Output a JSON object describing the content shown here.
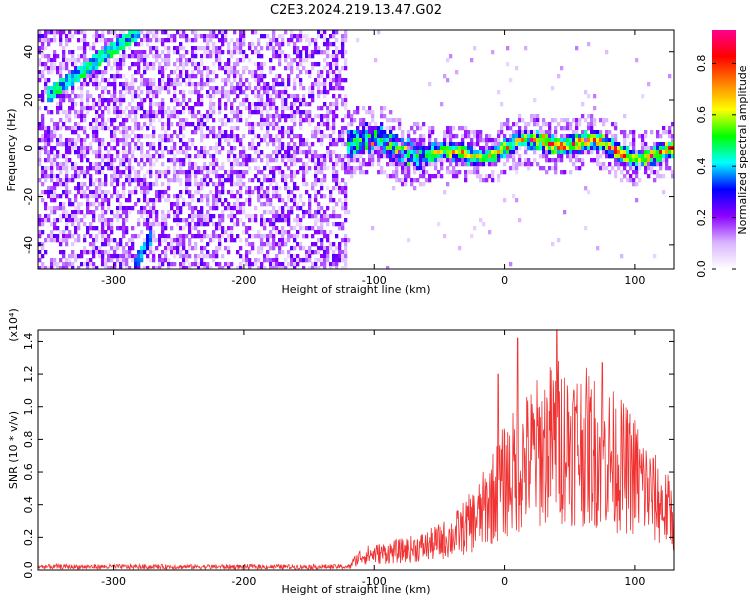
{
  "title": "C2E3.2024.219.13.47.G02",
  "chart_data": [
    {
      "type": "heatmap",
      "name": "spectrogram",
      "xlabel": "Height of straight line (km)",
      "ylabel": "Frequency (Hz)",
      "xlim": [
        -358,
        130
      ],
      "ylim": [
        -50,
        49
      ],
      "xticks": [
        -300,
        -200,
        -100,
        0,
        100
      ],
      "yticks": [
        -40,
        -20,
        0,
        20,
        40
      ],
      "colorbar": {
        "label": "Normalized spectral amplitude",
        "range": [
          0.0,
          0.93
        ],
        "ticks": [
          0.0,
          0.2,
          0.4,
          0.6,
          0.8
        ],
        "colors": [
          "#ffffff",
          "#d9b3ff",
          "#8b00ff",
          "#0000ff",
          "#00ffff",
          "#00ff00",
          "#ffff00",
          "#ff8000",
          "#ff0000",
          "#ff0090"
        ]
      },
      "features": {
        "noise_region_x": [
          -358,
          -122
        ],
        "signal_band_center_hz": 0,
        "signal_x": [
          -122,
          130
        ],
        "tone_line_1": {
          "x": [
            -350,
            -280
          ],
          "y": [
            22,
            49
          ]
        },
        "tone_line_2": {
          "x": [
            -285,
            -270
          ],
          "y": [
            -50,
            -35
          ]
        }
      }
    },
    {
      "type": "line",
      "name": "snr",
      "xlabel": "Height of straight line (km)",
      "ylabel": "SNR (10 * v/v)",
      "scale_label": "(x10⁴)",
      "xlim": [
        -358,
        130
      ],
      "ylim": [
        0,
        1.47
      ],
      "xticks": [
        -300,
        -200,
        -100,
        0,
        100
      ],
      "yticks": [
        0.0,
        0.2,
        0.4,
        0.6,
        0.8,
        1.0,
        1.2,
        1.4
      ],
      "series": [
        {
          "name": "SNR",
          "color": "#f03232",
          "envelope": [
            [
              -358,
              0.03
            ],
            [
              -120,
              0.03
            ],
            [
              -110,
              0.12
            ],
            [
              -80,
              0.16
            ],
            [
              -60,
              0.2
            ],
            [
              -40,
              0.28
            ],
            [
              -20,
              0.45
            ],
            [
              0,
              0.75
            ],
            [
              20,
              0.95
            ],
            [
              40,
              1.1
            ],
            [
              60,
              1.05
            ],
            [
              80,
              0.95
            ],
            [
              100,
              0.8
            ],
            [
              115,
              0.6
            ],
            [
              130,
              0.45
            ]
          ],
          "peak_annotations": [
            [
              -5,
              1.2
            ],
            [
              10,
              1.42
            ],
            [
              40,
              1.47
            ],
            [
              75,
              1.27
            ]
          ]
        }
      ]
    }
  ]
}
